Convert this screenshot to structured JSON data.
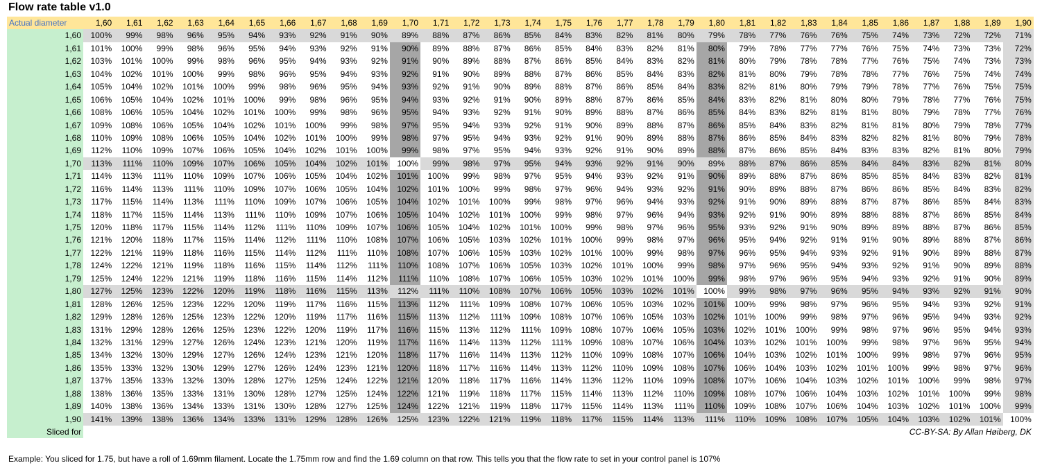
{
  "title": "Flow rate table v1.0",
  "header": {
    "label": "Actual diameter",
    "columns": [
      "1,60",
      "1,61",
      "1,62",
      "1,63",
      "1,64",
      "1,65",
      "1,66",
      "1,67",
      "1,68",
      "1,69",
      "1,70",
      "1,71",
      "1,72",
      "1,73",
      "1,74",
      "1,75",
      "1,76",
      "1,77",
      "1,78",
      "1,79",
      "1,80",
      "1,81",
      "1,82",
      "1,83",
      "1,84",
      "1,85",
      "1,86",
      "1,87",
      "1,88",
      "1,89",
      "1,90"
    ]
  },
  "rows": [
    {
      "label": "1,60",
      "values": [
        "100%",
        "99%",
        "98%",
        "96%",
        "95%",
        "94%",
        "93%",
        "92%",
        "91%",
        "90%",
        "89%",
        "88%",
        "87%",
        "86%",
        "85%",
        "84%",
        "83%",
        "82%",
        "81%",
        "80%",
        "79%",
        "78%",
        "77%",
        "76%",
        "76%",
        "75%",
        "74%",
        "73%",
        "72%",
        "72%",
        "71%"
      ]
    },
    {
      "label": "1,61",
      "values": [
        "101%",
        "100%",
        "99%",
        "98%",
        "96%",
        "95%",
        "94%",
        "93%",
        "92%",
        "91%",
        "90%",
        "89%",
        "88%",
        "87%",
        "86%",
        "85%",
        "84%",
        "83%",
        "82%",
        "81%",
        "80%",
        "79%",
        "78%",
        "77%",
        "77%",
        "76%",
        "75%",
        "74%",
        "73%",
        "73%",
        "72%"
      ]
    },
    {
      "label": "1,62",
      "values": [
        "103%",
        "101%",
        "100%",
        "99%",
        "98%",
        "96%",
        "95%",
        "94%",
        "93%",
        "92%",
        "91%",
        "90%",
        "89%",
        "88%",
        "87%",
        "86%",
        "85%",
        "84%",
        "83%",
        "82%",
        "81%",
        "80%",
        "79%",
        "78%",
        "78%",
        "77%",
        "76%",
        "75%",
        "74%",
        "73%",
        "73%"
      ]
    },
    {
      "label": "1,63",
      "values": [
        "104%",
        "102%",
        "101%",
        "100%",
        "99%",
        "98%",
        "96%",
        "95%",
        "94%",
        "93%",
        "92%",
        "91%",
        "90%",
        "89%",
        "88%",
        "87%",
        "86%",
        "85%",
        "84%",
        "83%",
        "82%",
        "81%",
        "80%",
        "79%",
        "78%",
        "78%",
        "77%",
        "76%",
        "75%",
        "74%",
        "74%"
      ]
    },
    {
      "label": "1,64",
      "values": [
        "105%",
        "104%",
        "102%",
        "101%",
        "100%",
        "99%",
        "98%",
        "96%",
        "95%",
        "94%",
        "93%",
        "92%",
        "91%",
        "90%",
        "89%",
        "88%",
        "87%",
        "86%",
        "85%",
        "84%",
        "83%",
        "82%",
        "81%",
        "80%",
        "79%",
        "79%",
        "78%",
        "77%",
        "76%",
        "75%",
        "75%"
      ]
    },
    {
      "label": "1,65",
      "values": [
        "106%",
        "105%",
        "104%",
        "102%",
        "101%",
        "100%",
        "99%",
        "98%",
        "96%",
        "95%",
        "94%",
        "93%",
        "92%",
        "91%",
        "90%",
        "89%",
        "88%",
        "87%",
        "86%",
        "85%",
        "84%",
        "83%",
        "82%",
        "81%",
        "80%",
        "80%",
        "79%",
        "78%",
        "77%",
        "76%",
        "75%"
      ]
    },
    {
      "label": "1,66",
      "values": [
        "108%",
        "106%",
        "105%",
        "104%",
        "102%",
        "101%",
        "100%",
        "99%",
        "98%",
        "96%",
        "95%",
        "94%",
        "93%",
        "92%",
        "91%",
        "90%",
        "89%",
        "88%",
        "87%",
        "86%",
        "85%",
        "84%",
        "83%",
        "82%",
        "81%",
        "81%",
        "80%",
        "79%",
        "78%",
        "77%",
        "76%"
      ]
    },
    {
      "label": "1,67",
      "values": [
        "109%",
        "108%",
        "106%",
        "105%",
        "104%",
        "102%",
        "101%",
        "100%",
        "99%",
        "98%",
        "97%",
        "95%",
        "94%",
        "93%",
        "92%",
        "91%",
        "90%",
        "89%",
        "88%",
        "87%",
        "86%",
        "85%",
        "84%",
        "83%",
        "82%",
        "81%",
        "81%",
        "80%",
        "79%",
        "78%",
        "77%"
      ]
    },
    {
      "label": "1,68",
      "values": [
        "110%",
        "109%",
        "108%",
        "106%",
        "105%",
        "104%",
        "102%",
        "101%",
        "100%",
        "99%",
        "98%",
        "97%",
        "95%",
        "94%",
        "93%",
        "92%",
        "91%",
        "90%",
        "89%",
        "88%",
        "87%",
        "86%",
        "85%",
        "84%",
        "83%",
        "82%",
        "82%",
        "81%",
        "80%",
        "79%",
        "78%"
      ]
    },
    {
      "label": "1,69",
      "values": [
        "112%",
        "110%",
        "109%",
        "107%",
        "106%",
        "105%",
        "104%",
        "102%",
        "101%",
        "100%",
        "99%",
        "98%",
        "97%",
        "95%",
        "94%",
        "93%",
        "92%",
        "91%",
        "90%",
        "89%",
        "88%",
        "87%",
        "86%",
        "85%",
        "84%",
        "83%",
        "83%",
        "82%",
        "81%",
        "80%",
        "79%"
      ]
    },
    {
      "label": "1,70",
      "values": [
        "113%",
        "111%",
        "110%",
        "109%",
        "107%",
        "106%",
        "105%",
        "104%",
        "102%",
        "101%",
        "100%",
        "99%",
        "98%",
        "97%",
        "95%",
        "94%",
        "93%",
        "92%",
        "91%",
        "90%",
        "89%",
        "88%",
        "87%",
        "86%",
        "85%",
        "84%",
        "84%",
        "83%",
        "82%",
        "81%",
        "80%"
      ]
    },
    {
      "label": "1,71",
      "values": [
        "114%",
        "113%",
        "111%",
        "110%",
        "109%",
        "107%",
        "106%",
        "105%",
        "104%",
        "102%",
        "101%",
        "100%",
        "99%",
        "98%",
        "97%",
        "95%",
        "94%",
        "93%",
        "92%",
        "91%",
        "90%",
        "89%",
        "88%",
        "87%",
        "86%",
        "85%",
        "85%",
        "84%",
        "83%",
        "82%",
        "81%"
      ]
    },
    {
      "label": "1,72",
      "values": [
        "116%",
        "114%",
        "113%",
        "111%",
        "110%",
        "109%",
        "107%",
        "106%",
        "105%",
        "104%",
        "102%",
        "101%",
        "100%",
        "99%",
        "98%",
        "97%",
        "96%",
        "94%",
        "93%",
        "92%",
        "91%",
        "90%",
        "89%",
        "88%",
        "87%",
        "86%",
        "86%",
        "85%",
        "84%",
        "83%",
        "82%"
      ]
    },
    {
      "label": "1,73",
      "values": [
        "117%",
        "115%",
        "114%",
        "113%",
        "111%",
        "110%",
        "109%",
        "107%",
        "106%",
        "105%",
        "104%",
        "102%",
        "101%",
        "100%",
        "99%",
        "98%",
        "97%",
        "96%",
        "94%",
        "93%",
        "92%",
        "91%",
        "90%",
        "89%",
        "88%",
        "87%",
        "87%",
        "86%",
        "85%",
        "84%",
        "83%"
      ]
    },
    {
      "label": "1,74",
      "values": [
        "118%",
        "117%",
        "115%",
        "114%",
        "113%",
        "111%",
        "110%",
        "109%",
        "107%",
        "106%",
        "105%",
        "104%",
        "102%",
        "101%",
        "100%",
        "99%",
        "98%",
        "97%",
        "96%",
        "94%",
        "93%",
        "92%",
        "91%",
        "90%",
        "89%",
        "88%",
        "88%",
        "87%",
        "86%",
        "85%",
        "84%"
      ]
    },
    {
      "label": "1,75",
      "values": [
        "120%",
        "118%",
        "117%",
        "115%",
        "114%",
        "112%",
        "111%",
        "110%",
        "109%",
        "107%",
        "106%",
        "105%",
        "104%",
        "102%",
        "101%",
        "100%",
        "99%",
        "98%",
        "97%",
        "96%",
        "95%",
        "93%",
        "92%",
        "91%",
        "90%",
        "89%",
        "89%",
        "88%",
        "87%",
        "86%",
        "85%"
      ]
    },
    {
      "label": "1,76",
      "values": [
        "121%",
        "120%",
        "118%",
        "117%",
        "115%",
        "114%",
        "112%",
        "111%",
        "110%",
        "108%",
        "107%",
        "106%",
        "105%",
        "103%",
        "102%",
        "101%",
        "100%",
        "99%",
        "98%",
        "97%",
        "96%",
        "95%",
        "94%",
        "92%",
        "91%",
        "91%",
        "90%",
        "89%",
        "88%",
        "87%",
        "86%"
      ]
    },
    {
      "label": "1,77",
      "values": [
        "122%",
        "121%",
        "119%",
        "118%",
        "116%",
        "115%",
        "114%",
        "112%",
        "111%",
        "110%",
        "108%",
        "107%",
        "106%",
        "105%",
        "103%",
        "102%",
        "101%",
        "100%",
        "99%",
        "98%",
        "97%",
        "96%",
        "95%",
        "94%",
        "93%",
        "92%",
        "91%",
        "90%",
        "89%",
        "88%",
        "87%"
      ]
    },
    {
      "label": "1,78",
      "values": [
        "124%",
        "122%",
        "121%",
        "119%",
        "118%",
        "116%",
        "115%",
        "114%",
        "112%",
        "111%",
        "110%",
        "108%",
        "107%",
        "106%",
        "105%",
        "103%",
        "102%",
        "101%",
        "100%",
        "99%",
        "98%",
        "97%",
        "96%",
        "95%",
        "94%",
        "93%",
        "92%",
        "91%",
        "90%",
        "89%",
        "88%"
      ]
    },
    {
      "label": "1,79",
      "values": [
        "125%",
        "124%",
        "122%",
        "121%",
        "119%",
        "118%",
        "116%",
        "115%",
        "114%",
        "112%",
        "111%",
        "110%",
        "108%",
        "107%",
        "106%",
        "105%",
        "103%",
        "102%",
        "101%",
        "100%",
        "99%",
        "98%",
        "97%",
        "96%",
        "95%",
        "94%",
        "93%",
        "92%",
        "91%",
        "90%",
        "89%"
      ]
    },
    {
      "label": "1,80",
      "values": [
        "127%",
        "125%",
        "123%",
        "122%",
        "120%",
        "119%",
        "118%",
        "116%",
        "115%",
        "113%",
        "112%",
        "111%",
        "110%",
        "108%",
        "107%",
        "106%",
        "105%",
        "103%",
        "102%",
        "101%",
        "100%",
        "99%",
        "98%",
        "97%",
        "96%",
        "95%",
        "94%",
        "93%",
        "92%",
        "91%",
        "90%"
      ]
    },
    {
      "label": "1,81",
      "values": [
        "128%",
        "126%",
        "125%",
        "123%",
        "122%",
        "120%",
        "119%",
        "117%",
        "116%",
        "115%",
        "113%",
        "112%",
        "111%",
        "109%",
        "108%",
        "107%",
        "106%",
        "105%",
        "103%",
        "102%",
        "101%",
        "100%",
        "99%",
        "98%",
        "97%",
        "96%",
        "95%",
        "94%",
        "93%",
        "92%",
        "91%"
      ]
    },
    {
      "label": "1,82",
      "values": [
        "129%",
        "128%",
        "126%",
        "125%",
        "123%",
        "122%",
        "120%",
        "119%",
        "117%",
        "116%",
        "115%",
        "113%",
        "112%",
        "111%",
        "109%",
        "108%",
        "107%",
        "106%",
        "105%",
        "103%",
        "102%",
        "101%",
        "100%",
        "99%",
        "98%",
        "97%",
        "96%",
        "95%",
        "94%",
        "93%",
        "92%"
      ]
    },
    {
      "label": "1,83",
      "values": [
        "131%",
        "129%",
        "128%",
        "126%",
        "125%",
        "123%",
        "122%",
        "120%",
        "119%",
        "117%",
        "116%",
        "115%",
        "113%",
        "112%",
        "111%",
        "109%",
        "108%",
        "107%",
        "106%",
        "105%",
        "103%",
        "102%",
        "101%",
        "100%",
        "99%",
        "98%",
        "97%",
        "96%",
        "95%",
        "94%",
        "93%"
      ]
    },
    {
      "label": "1,84",
      "values": [
        "132%",
        "131%",
        "129%",
        "127%",
        "126%",
        "124%",
        "123%",
        "121%",
        "120%",
        "119%",
        "117%",
        "116%",
        "114%",
        "113%",
        "112%",
        "111%",
        "109%",
        "108%",
        "107%",
        "106%",
        "104%",
        "103%",
        "102%",
        "101%",
        "100%",
        "99%",
        "98%",
        "97%",
        "96%",
        "95%",
        "94%"
      ]
    },
    {
      "label": "1,85",
      "values": [
        "134%",
        "132%",
        "130%",
        "129%",
        "127%",
        "126%",
        "124%",
        "123%",
        "121%",
        "120%",
        "118%",
        "117%",
        "116%",
        "114%",
        "113%",
        "112%",
        "110%",
        "109%",
        "108%",
        "107%",
        "106%",
        "104%",
        "103%",
        "102%",
        "101%",
        "100%",
        "99%",
        "98%",
        "97%",
        "96%",
        "95%"
      ]
    },
    {
      "label": "1,86",
      "values": [
        "135%",
        "133%",
        "132%",
        "130%",
        "129%",
        "127%",
        "126%",
        "124%",
        "123%",
        "121%",
        "120%",
        "118%",
        "117%",
        "116%",
        "114%",
        "113%",
        "112%",
        "110%",
        "109%",
        "108%",
        "107%",
        "106%",
        "104%",
        "103%",
        "102%",
        "101%",
        "100%",
        "99%",
        "98%",
        "97%",
        "96%"
      ]
    },
    {
      "label": "1,87",
      "values": [
        "137%",
        "135%",
        "133%",
        "132%",
        "130%",
        "128%",
        "127%",
        "125%",
        "124%",
        "122%",
        "121%",
        "120%",
        "118%",
        "117%",
        "116%",
        "114%",
        "113%",
        "112%",
        "110%",
        "109%",
        "108%",
        "107%",
        "106%",
        "104%",
        "103%",
        "102%",
        "101%",
        "100%",
        "99%",
        "98%",
        "97%"
      ]
    },
    {
      "label": "1,88",
      "values": [
        "138%",
        "136%",
        "135%",
        "133%",
        "131%",
        "130%",
        "128%",
        "127%",
        "125%",
        "124%",
        "122%",
        "121%",
        "119%",
        "118%",
        "117%",
        "115%",
        "114%",
        "113%",
        "112%",
        "110%",
        "109%",
        "108%",
        "107%",
        "106%",
        "104%",
        "103%",
        "102%",
        "101%",
        "100%",
        "99%",
        "98%"
      ]
    },
    {
      "label": "1,89",
      "values": [
        "140%",
        "138%",
        "136%",
        "134%",
        "133%",
        "131%",
        "130%",
        "128%",
        "127%",
        "125%",
        "124%",
        "122%",
        "121%",
        "119%",
        "118%",
        "117%",
        "115%",
        "114%",
        "113%",
        "111%",
        "110%",
        "109%",
        "108%",
        "107%",
        "106%",
        "104%",
        "103%",
        "102%",
        "101%",
        "100%",
        "99%"
      ]
    },
    {
      "label": "1,90",
      "values": [
        "141%",
        "139%",
        "138%",
        "136%",
        "134%",
        "133%",
        "131%",
        "129%",
        "128%",
        "126%",
        "125%",
        "123%",
        "122%",
        "121%",
        "119%",
        "118%",
        "117%",
        "115%",
        "114%",
        "113%",
        "111%",
        "110%",
        "109%",
        "108%",
        "107%",
        "105%",
        "104%",
        "103%",
        "102%",
        "101%",
        "100%"
      ]
    }
  ],
  "footer": {
    "label": "Sliced for",
    "credit": "CC-BY-SA: By Allan Høiberg, DK"
  },
  "note": "Example: You sliced for 1.75, but have a roll of 1.69mm filament. Locate the 1.75mm row and find the 1.69 column on that row. This tells you that the flow rate to set in your control panel is 107%"
}
